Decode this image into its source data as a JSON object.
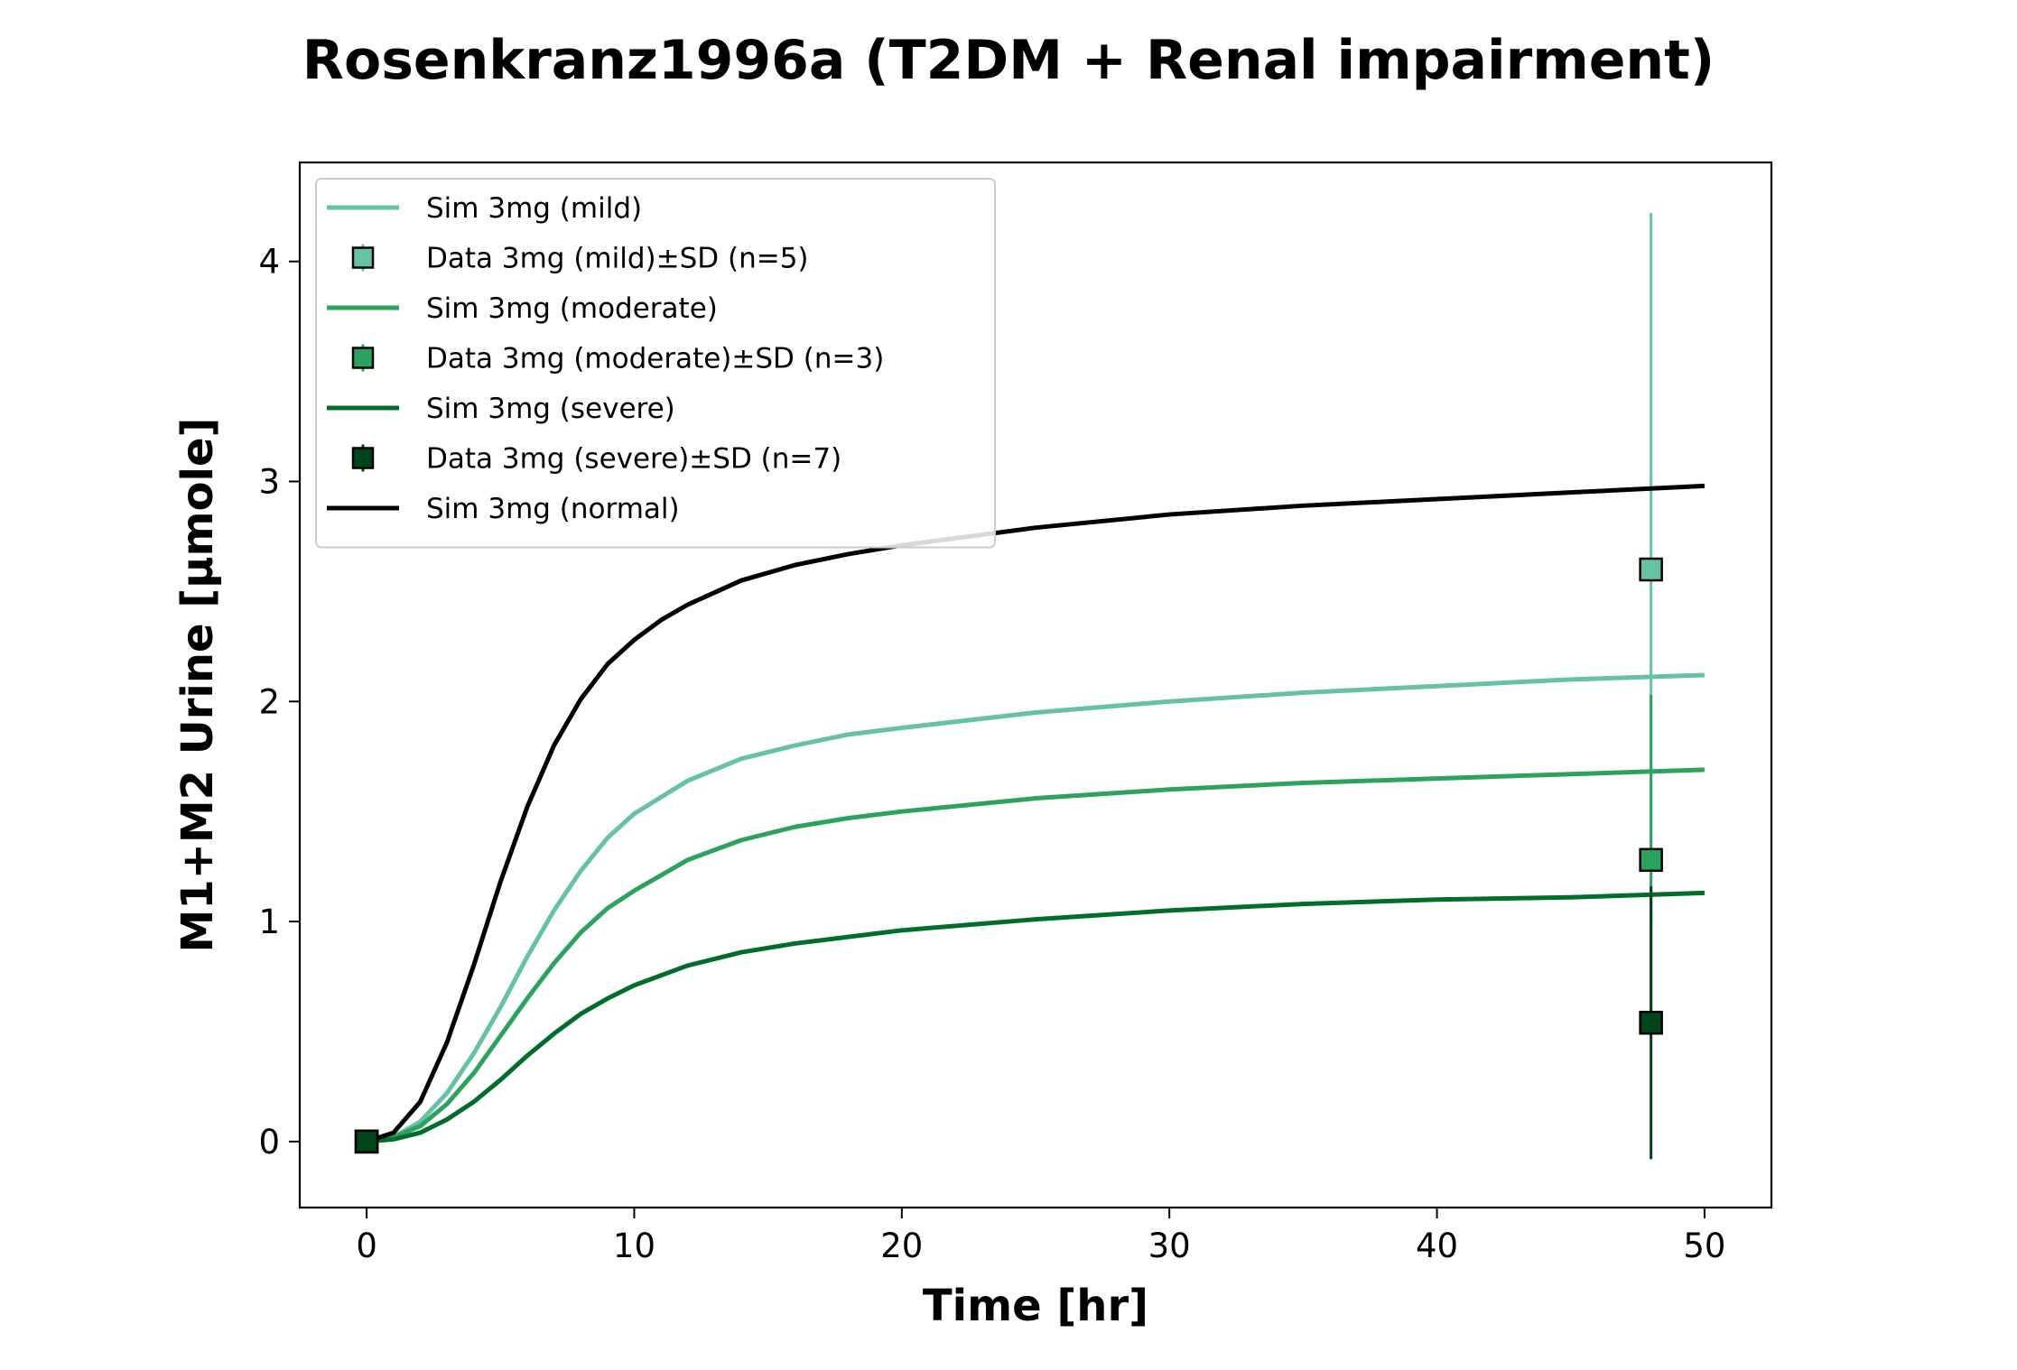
{
  "chart_data": {
    "type": "line",
    "title": "Rosenkranz1996a (T2DM + Renal impairment)",
    "xlabel": "Time [hr]",
    "ylabel": "M1+M2 Urine [µmole]",
    "xlim": [
      -2.5,
      52.5
    ],
    "ylim": [
      -0.3,
      4.45
    ],
    "xticks": [
      0,
      10,
      20,
      30,
      40,
      50
    ],
    "yticks": [
      0,
      1,
      2,
      3,
      4
    ],
    "grid": false,
    "legend_position": "top-left",
    "series": [
      {
        "name": "Sim 3mg (mild)",
        "kind": "line",
        "color": "#66c2a4",
        "x": [
          0,
          1,
          2,
          3,
          4,
          5,
          6,
          7,
          8,
          9,
          10,
          12,
          14,
          16,
          18,
          20,
          25,
          30,
          35,
          40,
          45,
          50
        ],
        "y": [
          0,
          0.02,
          0.09,
          0.22,
          0.4,
          0.61,
          0.84,
          1.05,
          1.23,
          1.38,
          1.49,
          1.64,
          1.74,
          1.8,
          1.85,
          1.88,
          1.95,
          2.0,
          2.04,
          2.07,
          2.1,
          2.12
        ]
      },
      {
        "name": "Data 3mg (mild)±SD (n=5)",
        "kind": "errorbar",
        "color": "#66c2a4",
        "x": [
          48
        ],
        "y": [
          2.6
        ],
        "yerr": [
          1.62
        ]
      },
      {
        "name": "Sim 3mg (moderate)",
        "kind": "line",
        "color": "#2ca25f",
        "x": [
          0,
          1,
          2,
          3,
          4,
          5,
          6,
          7,
          8,
          9,
          10,
          12,
          14,
          16,
          18,
          20,
          25,
          30,
          35,
          40,
          45,
          50
        ],
        "y": [
          0,
          0.02,
          0.07,
          0.17,
          0.31,
          0.48,
          0.65,
          0.81,
          0.95,
          1.06,
          1.14,
          1.28,
          1.37,
          1.43,
          1.47,
          1.5,
          1.56,
          1.6,
          1.63,
          1.65,
          1.67,
          1.69
        ]
      },
      {
        "name": "Data 3mg (moderate)±SD (n=3)",
        "kind": "errorbar",
        "color": "#2ca25f",
        "x": [
          48
        ],
        "y": [
          1.28
        ],
        "yerr": [
          0.75
        ]
      },
      {
        "name": "Sim 3mg (severe)",
        "kind": "line",
        "color": "#006d2c",
        "x": [
          0,
          1,
          2,
          3,
          4,
          5,
          6,
          7,
          8,
          9,
          10,
          12,
          14,
          16,
          18,
          20,
          25,
          30,
          35,
          40,
          45,
          50
        ],
        "y": [
          0,
          0.01,
          0.04,
          0.1,
          0.18,
          0.28,
          0.39,
          0.49,
          0.58,
          0.65,
          0.71,
          0.8,
          0.86,
          0.9,
          0.93,
          0.96,
          1.01,
          1.05,
          1.08,
          1.1,
          1.11,
          1.13
        ]
      },
      {
        "name": "Data 3mg (severe)±SD (n=7)",
        "kind": "errorbar",
        "color": "#00441b",
        "x": [
          48
        ],
        "y": [
          0.54
        ],
        "yerr": [
          0.62
        ]
      },
      {
        "name": "Sim 3mg (normal)",
        "kind": "line",
        "color": "#000000",
        "x": [
          0,
          1,
          2,
          3,
          4,
          5,
          6,
          7,
          8,
          9,
          10,
          11,
          12,
          14,
          16,
          18,
          20,
          25,
          30,
          35,
          40,
          45,
          50
        ],
        "y": [
          0,
          0.04,
          0.18,
          0.45,
          0.8,
          1.18,
          1.52,
          1.8,
          2.01,
          2.17,
          2.28,
          2.37,
          2.44,
          2.55,
          2.62,
          2.67,
          2.71,
          2.79,
          2.85,
          2.89,
          2.92,
          2.95,
          2.98
        ]
      }
    ],
    "initial_points": [
      {
        "x": 0,
        "y": 0,
        "color": "#66c2a4"
      },
      {
        "x": 0,
        "y": 0,
        "color": "#2ca25f"
      },
      {
        "x": 0,
        "y": 0,
        "color": "#00441b"
      }
    ]
  }
}
